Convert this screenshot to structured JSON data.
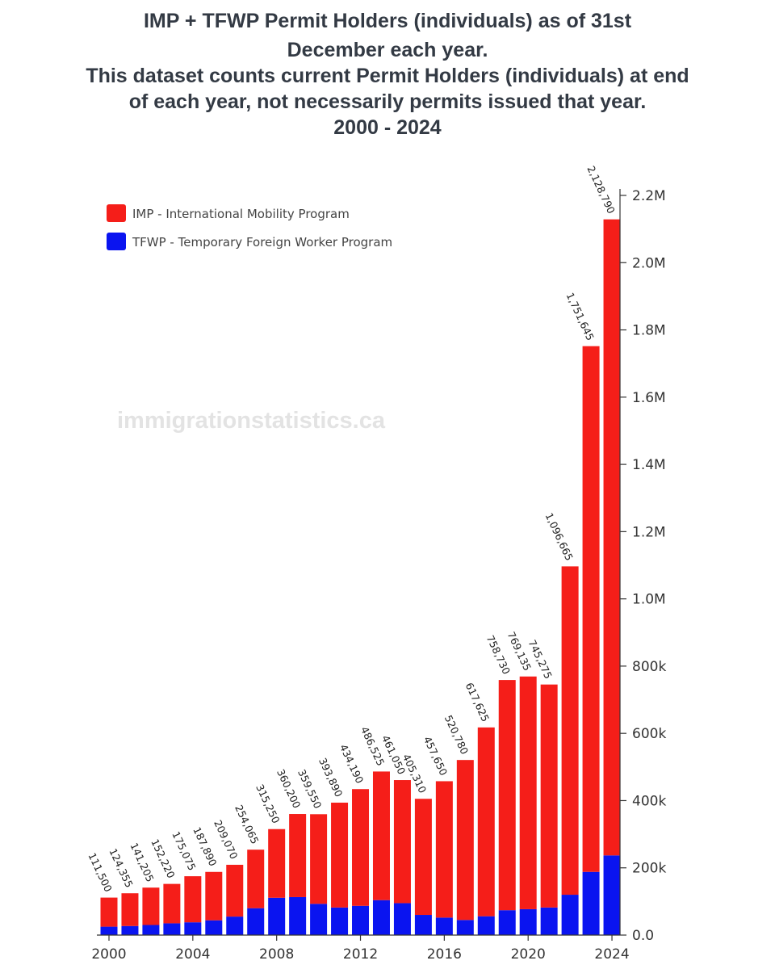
{
  "chart_data": {
    "type": "bar",
    "stacked": true,
    "title_lines": [
      "IMP + TFWP Permit Holders (individuals) as of 31st",
      "December each year.",
      "This dataset counts current Permit Holders (individuals) at end",
      "of each year, not necessarily permits issued that year.",
      "2000 - 2024"
    ],
    "watermark": "immigrationstatistics.ca",
    "categories": [
      2000,
      2001,
      2002,
      2003,
      2004,
      2005,
      2006,
      2007,
      2008,
      2009,
      2010,
      2011,
      2012,
      2013,
      2014,
      2015,
      2016,
      2017,
      2018,
      2019,
      2020,
      2021,
      2022,
      2023,
      2024
    ],
    "x_ticks": [
      2000,
      2004,
      2008,
      2012,
      2016,
      2020,
      2024
    ],
    "ylim": [
      0,
      2200000
    ],
    "y_ticks": [
      0,
      200000,
      400000,
      600000,
      800000,
      1000000,
      1200000,
      1400000,
      1600000,
      1800000,
      2000000,
      2200000
    ],
    "y_tick_labels": [
      "0.0",
      "200k",
      "400k",
      "600k",
      "800k",
      "1.0M",
      "1.2M",
      "1.4M",
      "1.6M",
      "1.8M",
      "2.0M",
      "2.2M"
    ],
    "y_axis_side": "right",
    "legend_placement": "top-left",
    "series": [
      {
        "name": "TFWP - Temporary Foreign Worker Program",
        "color": "#0a14f0",
        "values": [
          25000,
          27000,
          30000,
          35000,
          38000,
          44000,
          55000,
          80000,
          111000,
          113000,
          93000,
          82000,
          87000,
          104000,
          95000,
          60000,
          52000,
          45000,
          56000,
          74000,
          77000,
          82000,
          120000,
          188000,
          237000
        ]
      },
      {
        "name": "IMP - International Mobility Program",
        "color": "#f51e19",
        "values": [
          86500,
          97355,
          111205,
          117220,
          137075,
          143890,
          154070,
          174065,
          204250,
          247200,
          266550,
          311890,
          347190,
          382525,
          366050,
          345310,
          405650,
          475780,
          561625,
          684730,
          692135,
          663275,
          976665,
          1563645,
          1891790
        ]
      }
    ],
    "totals": [
      111500,
      124355,
      141205,
      152220,
      175075,
      187890,
      209070,
      254065,
      315250,
      360200,
      359550,
      393890,
      434190,
      486525,
      461050,
      405310,
      457650,
      520780,
      617625,
      758730,
      769135,
      745275,
      1096665,
      1751645,
      2128790
    ],
    "total_labels": [
      "111,500",
      "124,355",
      "141,205",
      "152,220",
      "175,075",
      "187,890",
      "209,070",
      "254,065",
      "315,250",
      "360,200",
      "359,550",
      "393,890",
      "434,190",
      "486,525",
      "461,050",
      "405,310",
      "457,650",
      "520,780",
      "617,625",
      "758,730",
      "769,135",
      "745,275",
      "1,096,665",
      "1,751,645",
      "2,128,790"
    ]
  }
}
